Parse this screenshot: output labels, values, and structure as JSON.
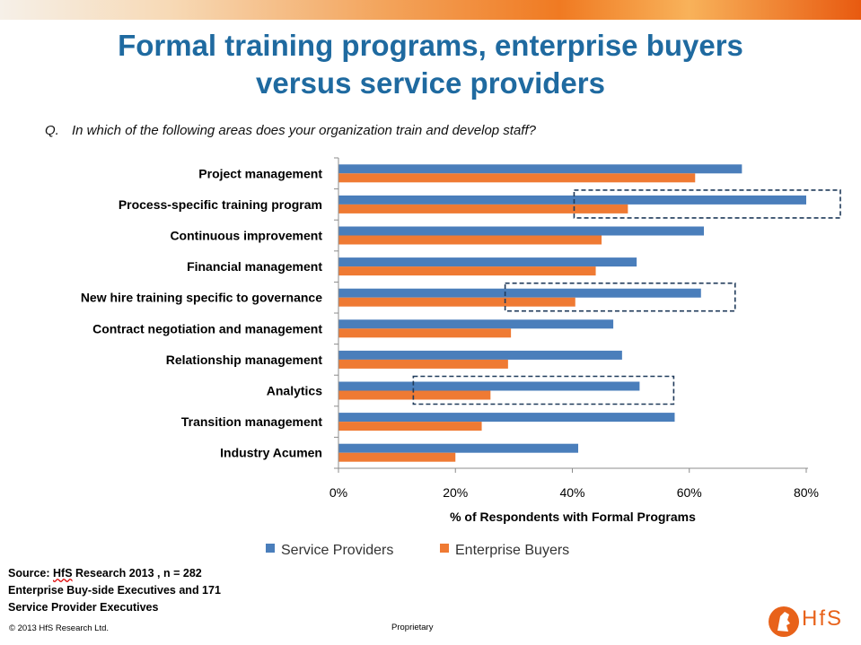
{
  "title_line1": "Formal training programs, enterprise buyers",
  "title_line2": "versus service providers",
  "question_prefix": "Q.",
  "question_text": "In which of the following areas does your organization train and develop staff?",
  "chart_data": {
    "type": "bar",
    "orientation": "horizontal",
    "categories": [
      "Project management",
      "Process-specific training program",
      "Continuous improvement",
      "Financial management",
      "New hire training specific to governance",
      "Contract negotiation and management",
      "Relationship management",
      "Analytics",
      "Transition management",
      "Industry Acumen"
    ],
    "series": [
      {
        "name": "Service Providers",
        "color": "#4a7ebb",
        "values": [
          69,
          80,
          62.5,
          51,
          62,
          47,
          48.5,
          51.5,
          57.5,
          41
        ]
      },
      {
        "name": "Enterprise Buyers",
        "color": "#ef7a33",
        "values": [
          61,
          49.5,
          45,
          44,
          40.5,
          29.5,
          29,
          26,
          24.5,
          20
        ]
      }
    ],
    "xlabel": "% of Respondents with Formal Programs",
    "xlim": [
      0,
      80
    ],
    "xticks": [
      "0%",
      "20%",
      "40%",
      "60%",
      "80%"
    ],
    "grid": false,
    "legend": "bottom",
    "highlighted_categories": [
      "Process-specific training program",
      "New hire training specific to governance",
      "Analytics"
    ]
  },
  "source_line1_prefix": "Source: ",
  "source_line1_brand": "HfS",
  "source_line1_suffix": " Research 2013 , n = 282",
  "source_line2": "Enterprise Buy-side Executives and 171",
  "source_line3": "Service Provider Executives",
  "copyright": "© 2013 HfS Research Ltd.",
  "proprietary": "Proprietary",
  "logo_text": "HfS",
  "colors": {
    "title": "#1f6aa0",
    "service": "#4a7ebb",
    "enterprise": "#ef7a33",
    "logo": "#e8621a"
  }
}
